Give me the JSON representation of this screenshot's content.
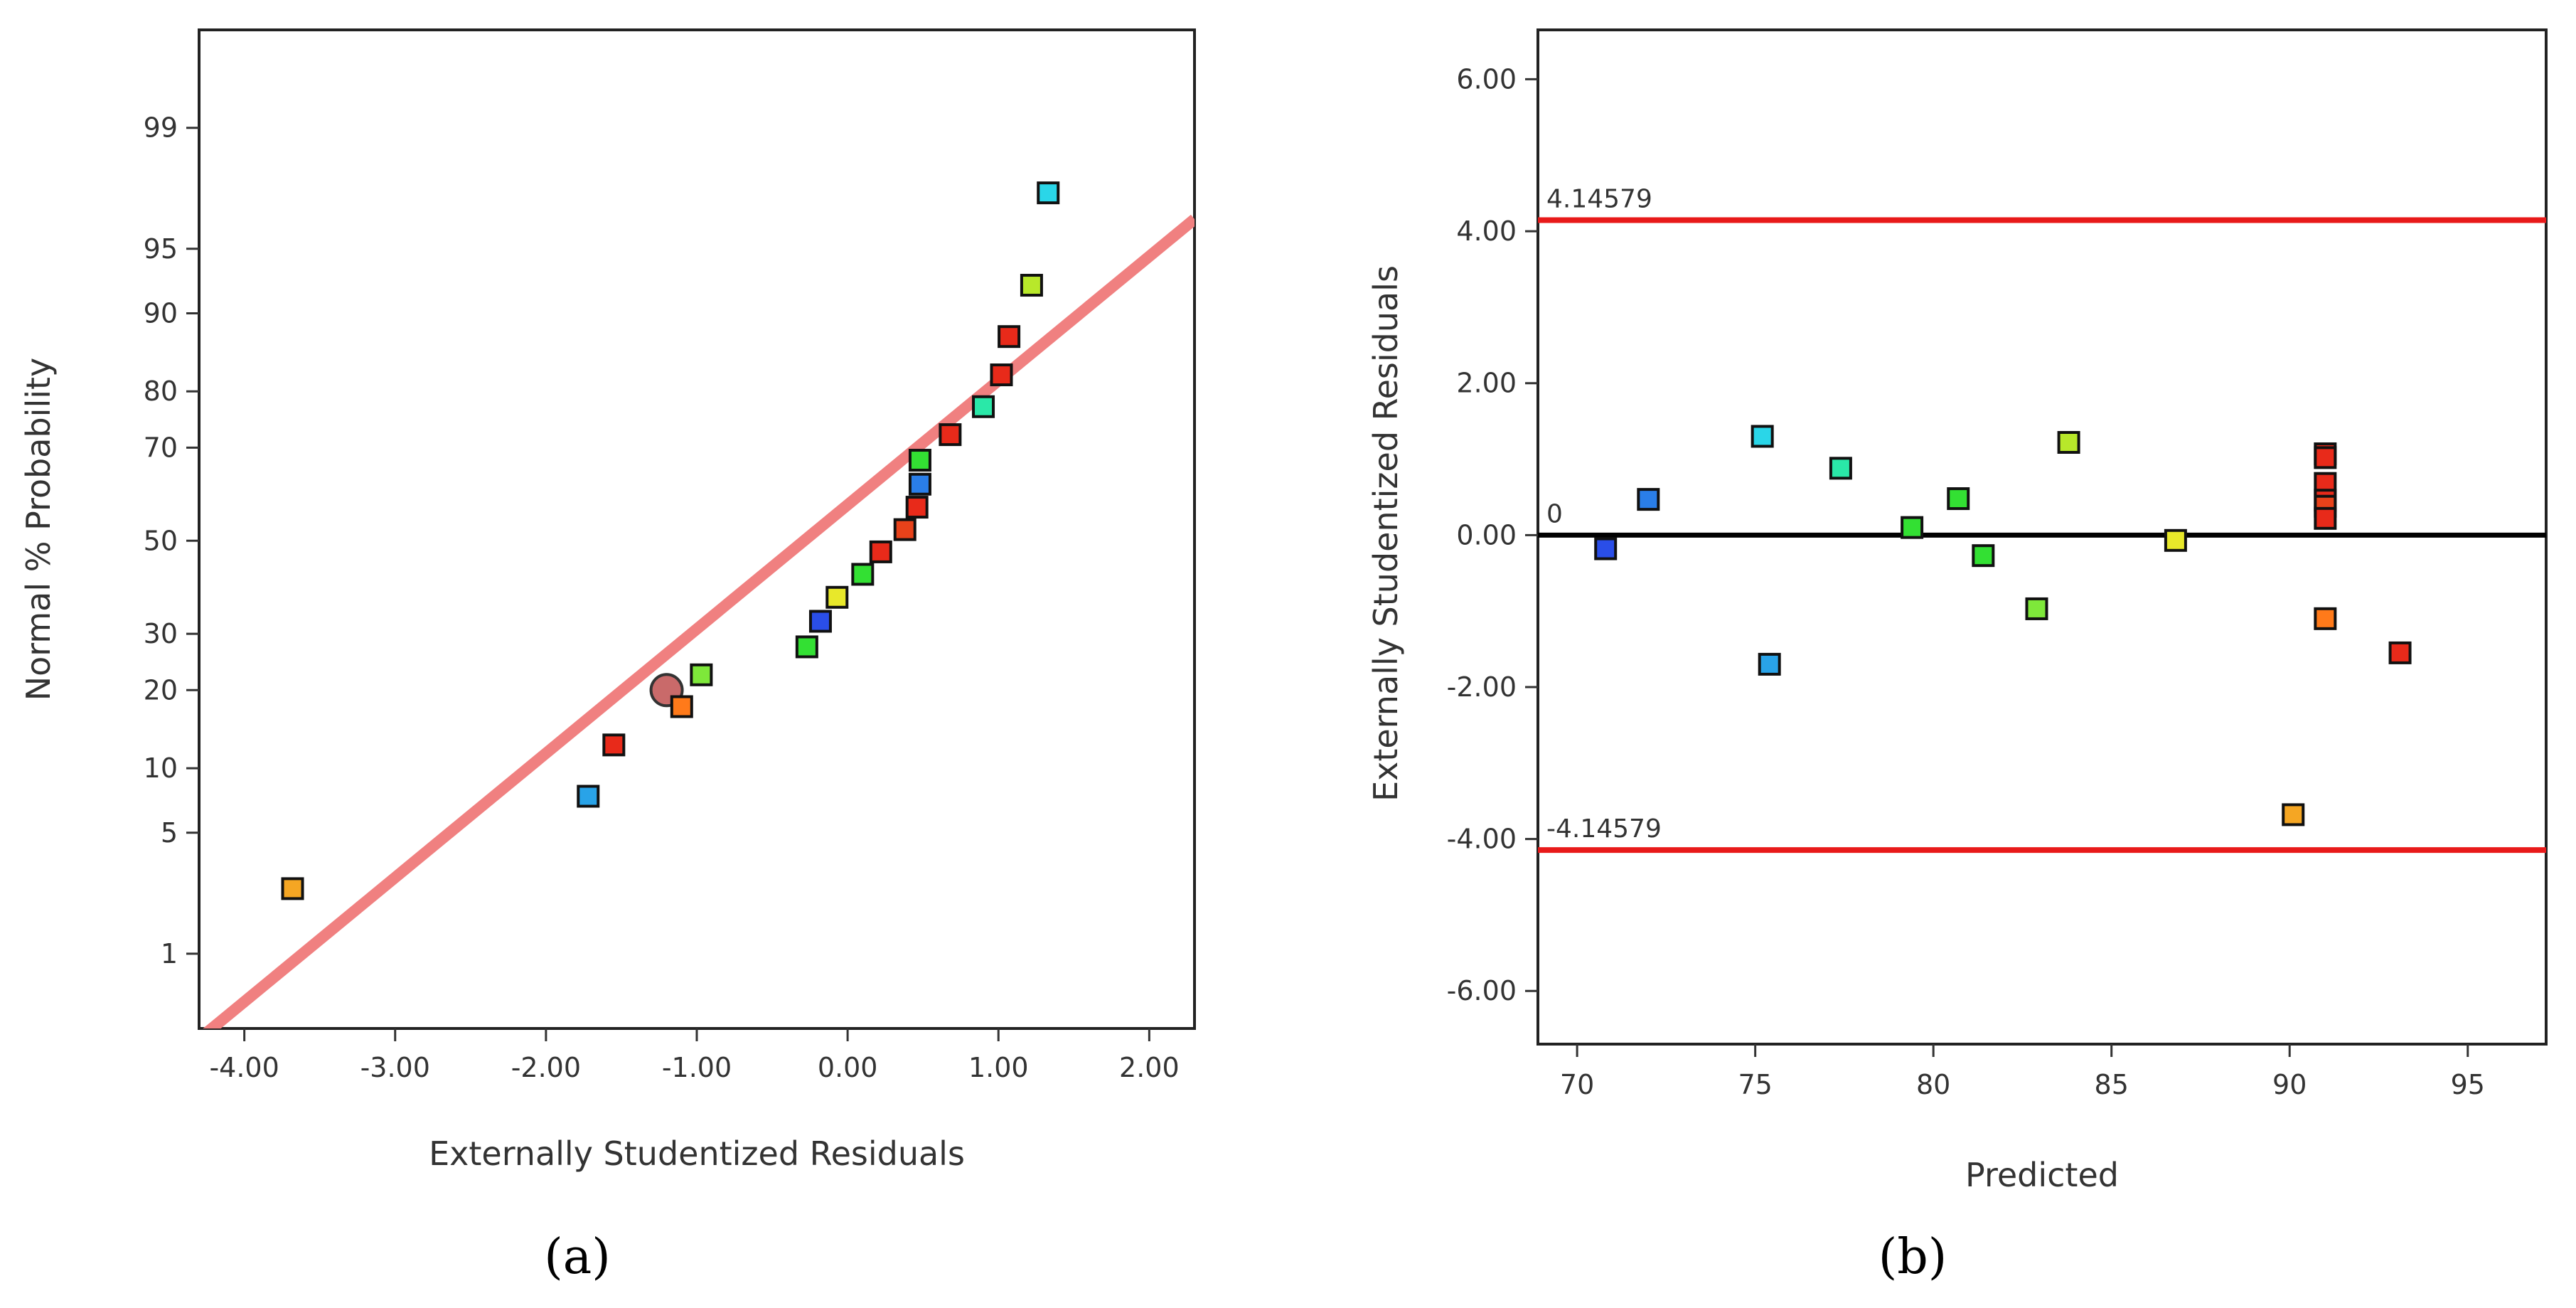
{
  "chart_data": [
    {
      "type": "scatter",
      "panel_label": "(a)",
      "title": "",
      "xlabel": "Externally Studentized Residuals",
      "ylabel": "Normal % Probability",
      "xlim": [
        -4.3,
        2.3
      ],
      "ylim_probability": [
        0.3,
        99.8
      ],
      "x_ticks": [
        -4,
        -3,
        -2,
        -1,
        0,
        1,
        2
      ],
      "x_tick_labels": [
        "-4.00",
        "-3.00",
        "-2.00",
        "-1.00",
        "0.00",
        "1.00",
        "2.00"
      ],
      "y_ticks": [
        1,
        5,
        10,
        20,
        30,
        50,
        70,
        80,
        90,
        95,
        99
      ],
      "y_tick_labels": [
        "1",
        "5",
        "10",
        "20",
        "30",
        "50",
        "70",
        "80",
        "90",
        "95",
        "99"
      ],
      "reference_line": {
        "x": [
          -4.3,
          2.3
        ],
        "p": [
          0.25,
          96.5
        ],
        "color": "#f08080"
      },
      "highlighted_point": {
        "x": -1.2,
        "p": 20,
        "color": "#c96a6a"
      },
      "points": [
        {
          "x": -3.68,
          "p": 2.5,
          "color": "#f5a623"
        },
        {
          "x": -1.72,
          "p": 7.5,
          "color": "#29a3e8"
        },
        {
          "x": -1.55,
          "p": 12.5,
          "color": "#e82a1a"
        },
        {
          "x": -1.1,
          "p": 17.5,
          "color": "#ff7a1a"
        },
        {
          "x": -0.97,
          "p": 22.5,
          "color": "#7ee83a"
        },
        {
          "x": -0.27,
          "p": 27.5,
          "color": "#33e033"
        },
        {
          "x": -0.18,
          "p": 32.5,
          "color": "#2a4ee8"
        },
        {
          "x": -0.07,
          "p": 37.5,
          "color": "#e8e82a"
        },
        {
          "x": 0.1,
          "p": 42.5,
          "color": "#33e033"
        },
        {
          "x": 0.22,
          "p": 47.5,
          "color": "#e82a1a"
        },
        {
          "x": 0.38,
          "p": 52.5,
          "color": "#e8421a"
        },
        {
          "x": 0.46,
          "p": 57.5,
          "color": "#e82a1a"
        },
        {
          "x": 0.48,
          "p": 62.5,
          "color": "#2a7ee8"
        },
        {
          "x": 0.48,
          "p": 67.5,
          "color": "#33e033"
        },
        {
          "x": 0.68,
          "p": 72.5,
          "color": "#e82a1a"
        },
        {
          "x": 0.9,
          "p": 77.5,
          "color": "#2ae8a8"
        },
        {
          "x": 1.02,
          "p": 82.5,
          "color": "#e82a1a"
        },
        {
          "x": 1.07,
          "p": 87.5,
          "color": "#e82a1a"
        },
        {
          "x": 1.22,
          "p": 92.5,
          "color": "#b8e82a"
        },
        {
          "x": 1.33,
          "p": 97.5,
          "color": "#2ad6e8"
        }
      ]
    },
    {
      "type": "scatter",
      "panel_label": "(b)",
      "title": "",
      "xlabel": "Predicted",
      "ylabel": "Externally Studentized Residuals",
      "xlim": [
        68.9,
        97.2
      ],
      "ylim": [
        -6.7,
        6.65
      ],
      "x_ticks": [
        70,
        75,
        80,
        85,
        90,
        95
      ],
      "x_tick_labels": [
        "70",
        "75",
        "80",
        "85",
        "90",
        "95"
      ],
      "y_ticks": [
        -6,
        -4,
        -2,
        0,
        2,
        4,
        6
      ],
      "y_tick_labels": [
        "-6.00",
        "-4.00",
        "-2.00",
        "0.00",
        "2.00",
        "4.00",
        "6.00"
      ],
      "reference_lines": [
        {
          "y": 4.14579,
          "label": "4.14579",
          "color": "#e81a1a"
        },
        {
          "y": 0,
          "label": "0",
          "color": "#000000"
        },
        {
          "y": -4.14579,
          "label": "-4.14579",
          "color": "#e81a1a"
        }
      ],
      "points": [
        {
          "x": 70.8,
          "y": -0.18,
          "color": "#2a4ee8"
        },
        {
          "x": 72.0,
          "y": 0.47,
          "color": "#2a7ee8"
        },
        {
          "x": 75.2,
          "y": 1.3,
          "color": "#2ad6e8"
        },
        {
          "x": 75.4,
          "y": -1.7,
          "color": "#29a3e8"
        },
        {
          "x": 77.4,
          "y": 0.88,
          "color": "#2ae8a8"
        },
        {
          "x": 79.4,
          "y": 0.1,
          "color": "#33e033"
        },
        {
          "x": 80.7,
          "y": 0.48,
          "color": "#33e033"
        },
        {
          "x": 81.4,
          "y": -0.27,
          "color": "#33e033"
        },
        {
          "x": 82.9,
          "y": -0.97,
          "color": "#7ee83a"
        },
        {
          "x": 83.8,
          "y": 1.22,
          "color": "#b8e82a"
        },
        {
          "x": 86.8,
          "y": -0.07,
          "color": "#e8e82a"
        },
        {
          "x": 90.1,
          "y": -3.68,
          "color": "#f5a623"
        },
        {
          "x": 91.0,
          "y": 1.07,
          "color": "#e82a1a"
        },
        {
          "x": 91.0,
          "y": 1.02,
          "color": "#e82a1a"
        },
        {
          "x": 91.0,
          "y": 0.68,
          "color": "#e82a1a"
        },
        {
          "x": 91.0,
          "y": 0.46,
          "color": "#e82a1a"
        },
        {
          "x": 91.0,
          "y": 0.38,
          "color": "#e8421a"
        },
        {
          "x": 91.0,
          "y": 0.22,
          "color": "#e82a1a"
        },
        {
          "x": 91.0,
          "y": -1.1,
          "color": "#ff7a1a"
        },
        {
          "x": 93.1,
          "y": -1.55,
          "color": "#e82a1a"
        }
      ]
    }
  ]
}
